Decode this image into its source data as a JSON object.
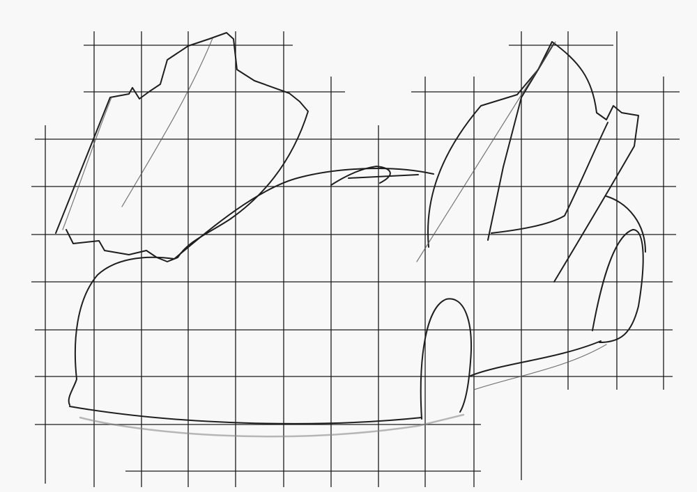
{
  "colors": {
    "paper": "#f8f8f8",
    "pencil": "#1e1e1e",
    "grid": "#1a1a1a"
  },
  "subject": {
    "depicts": "car-sketch-with-open-doors-on-grid"
  }
}
